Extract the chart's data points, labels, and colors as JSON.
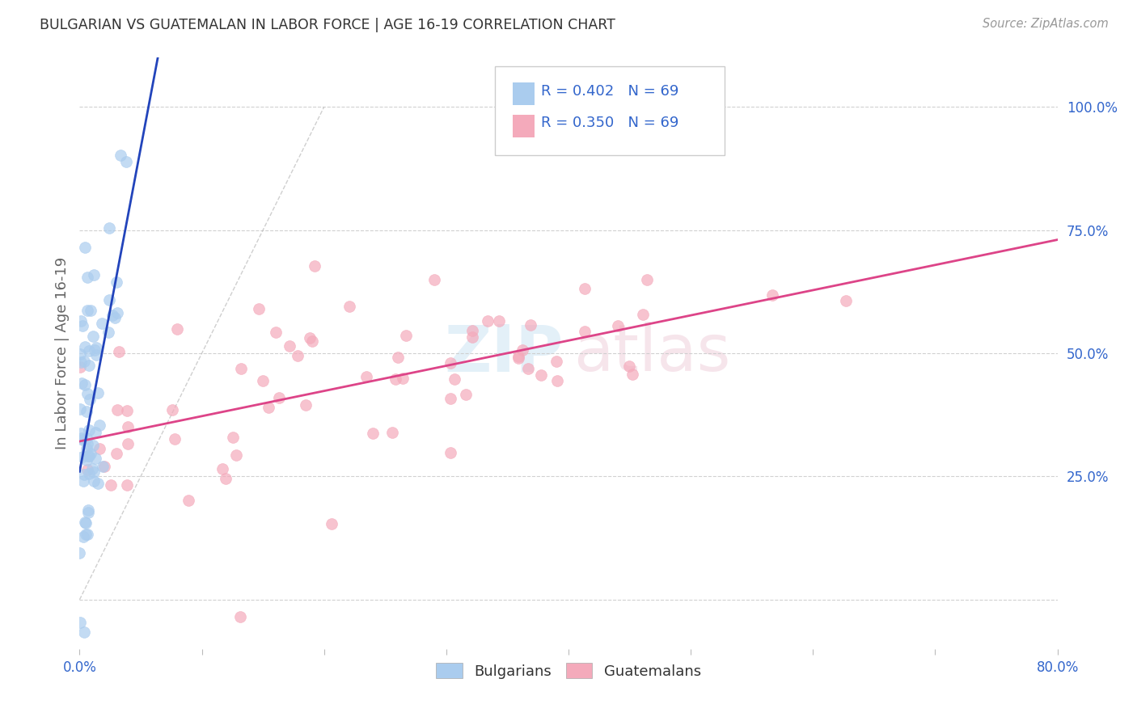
{
  "title": "BULGARIAN VS GUATEMALAN IN LABOR FORCE | AGE 16-19 CORRELATION CHART",
  "source": "Source: ZipAtlas.com",
  "ylabel": "In Labor Force | Age 16-19",
  "xlim": [
    0.0,
    0.8
  ],
  "ylim": [
    -0.1,
    1.1
  ],
  "xticks": [
    0.0,
    0.1,
    0.2,
    0.3,
    0.4,
    0.5,
    0.6,
    0.7,
    0.8
  ],
  "xticklabels": [
    "0.0%",
    "",
    "",
    "",
    "",
    "",
    "",
    "",
    "80.0%"
  ],
  "ytick_positions": [
    0.0,
    0.25,
    0.5,
    0.75,
    1.0
  ],
  "ytick_right_labels": [
    "",
    "25.0%",
    "50.0%",
    "75.0%",
    "100.0%"
  ],
  "bg_color": "#ffffff",
  "grid_color": "#cccccc",
  "bulgarian_color": "#aaccee",
  "guatemalan_color": "#f4aabb",
  "bulgarian_line_color": "#2244bb",
  "guatemalan_line_color": "#dd4488",
  "diagonal_color": "#bbbbbb",
  "watermark_zip_color": "#cce4f4",
  "watermark_atlas_color": "#f0d0dc",
  "legend_box_edge": "#cccccc",
  "tick_label_color": "#3366cc",
  "title_color": "#333333",
  "source_color": "#999999",
  "ylabel_color": "#666666",
  "n_bulgarian": 69,
  "n_guatemalan": 69,
  "bg_seed": 7
}
